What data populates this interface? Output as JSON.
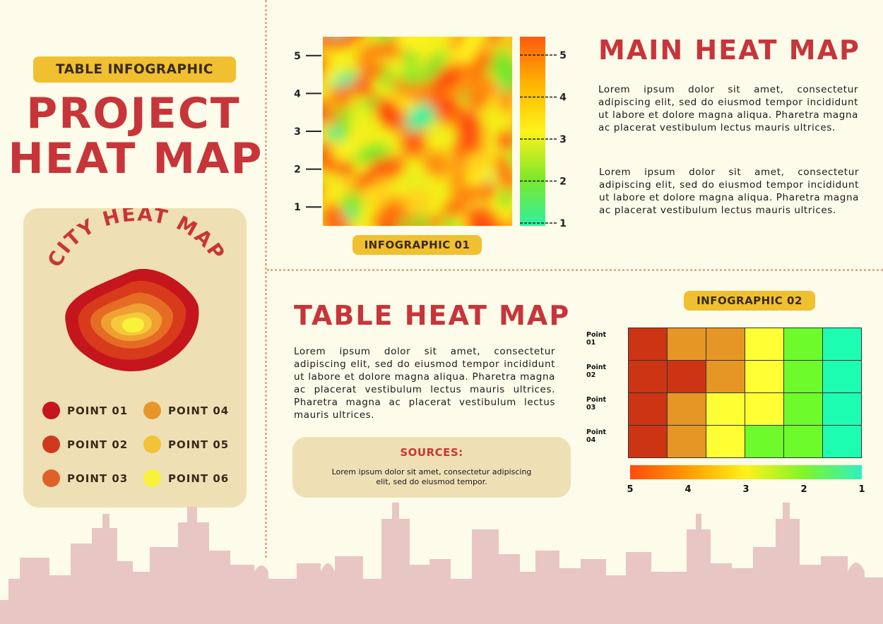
{
  "header": {
    "badge": "TABLE INFOGRAPHIC",
    "title_line1": "PROJECT",
    "title_line2": "HEAT MAP"
  },
  "city_card": {
    "title": "CITY HEAT MAP",
    "points": [
      {
        "label": "POINT 01",
        "color": "#c4161c"
      },
      {
        "label": "POINT 04",
        "color": "#e8952a"
      },
      {
        "label": "POINT 02",
        "color": "#cf3a1e"
      },
      {
        "label": "POINT 05",
        "color": "#f2c237"
      },
      {
        "label": "POINT 03",
        "color": "#de6228"
      },
      {
        "label": "POINT 06",
        "color": "#f8f23a"
      }
    ]
  },
  "main_section": {
    "title": "MAIN HEAT MAP",
    "para1": "Lorem ipsum dolor sit amet, consectetur adipiscing elit, sed do eiusmod tempor incididunt ut labore et dolore magna aliqua. Pharetra magna ac placerat vestibulum lectus mauris ultrices.",
    "para2": "Lorem ipsum dolor sit amet, consectetur adipiscing elit, sed do eiusmod tempor incididunt ut labore et dolore magna aliqua. Pharetra magna ac placerat vestibulum lectus mauris ultrices.",
    "badge": "INFOGRAPHIC 01"
  },
  "table_section": {
    "title": "TABLE HEAT MAP",
    "para": "Lorem ipsum dolor sit amet, consectetur adipiscing elit, sed do eiusmod tempor incididunt ut labore et dolore magna aliqua. Pharetra magna ac placerat vestibulum lectus mauris ultrices. Pharetra magna ac placerat vestibulum lectus mauris ultrices.",
    "sources_title": "SOURCES:",
    "sources_text": "Lorem ipsum dolor sit amet, consectetur adipiscing elit, sed do eiusmod tempor.",
    "badge": "INFOGRAPHIC 02"
  },
  "colors": {
    "accent_red": "#c7353a",
    "badge_yellow": "#f0c030",
    "card_beige": "#efdfb4",
    "skyline": "#e8c6c3",
    "background": "#fdfbe9"
  },
  "chart_data": [
    {
      "type": "heatmap",
      "title": "",
      "y_ticks": [
        "1",
        "2",
        "3",
        "4",
        "5"
      ],
      "ylim": [
        1,
        5
      ],
      "colorbar": {
        "ticks": [
          "1",
          "2",
          "3",
          "4",
          "5"
        ],
        "range": [
          1,
          5
        ],
        "colors": [
          "#2ff0a0",
          "#7ee82a",
          "#fff21a",
          "#ffb400",
          "#ff5a10"
        ]
      }
    },
    {
      "type": "heatmap",
      "title": "",
      "rows": [
        "Point 01",
        "Point 02",
        "Point 03",
        "Point 04"
      ],
      "values": [
        [
          5,
          4,
          4,
          3,
          2,
          1
        ],
        [
          5,
          5,
          4,
          3,
          2,
          1
        ],
        [
          5,
          4,
          3,
          3,
          2,
          1
        ],
        [
          5,
          4,
          3,
          2,
          2,
          1
        ]
      ],
      "scale": {
        "ticks": [
          "5",
          "4",
          "3",
          "2",
          "1"
        ],
        "range": [
          5,
          1
        ]
      },
      "value_colors": {
        "5": "#cc3414",
        "4": "#e59625",
        "3": "#ffff33",
        "2": "#6dfb2b",
        "1": "#1dfdb2"
      }
    }
  ]
}
